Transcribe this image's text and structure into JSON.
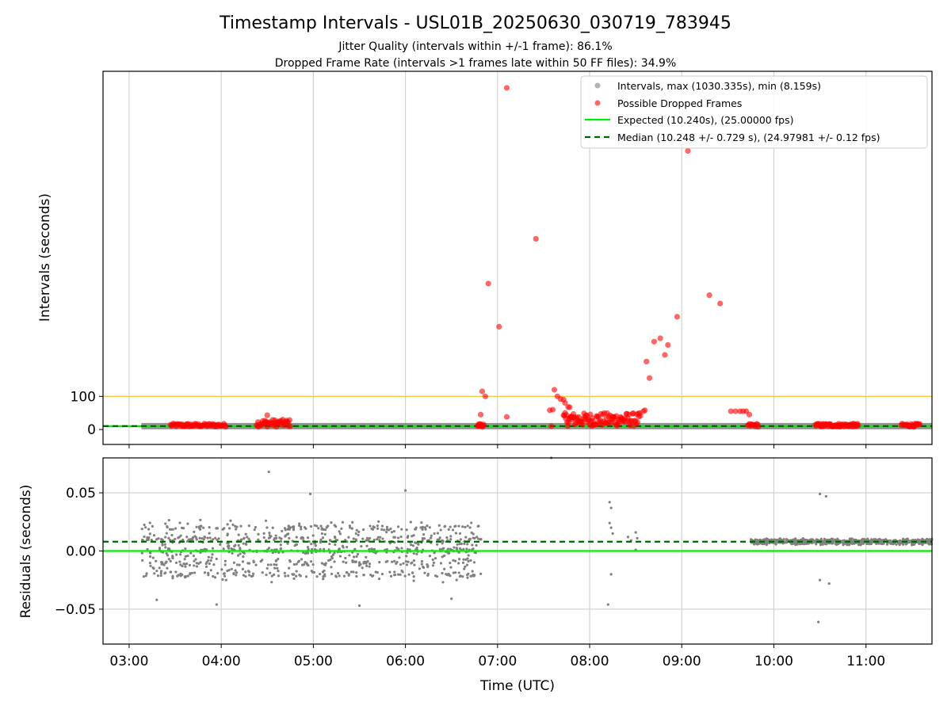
{
  "figure": {
    "title": "Timestamp Intervals - USL01B_20250630_030719_783945",
    "subtitle_1": "Jitter Quality (intervals within +/-1 frame): 86.1%",
    "subtitle_2": "Dropped Frame Rate (intervals >1 frames late within 50 FF files): 34.9%"
  },
  "chart_data": [
    {
      "type": "scatter",
      "ylabel": "Intervals (seconds)",
      "yticks": [
        0,
        100
      ],
      "ylim": [
        -45,
        1080
      ],
      "xlim": [
        "02:43",
        "11:43"
      ],
      "grid": "vertical",
      "legend_position": "top-right",
      "legend": [
        "Intervals, max (1030.335s), min (8.159s)",
        "Possible Dropped Frames",
        "Expected (10.240s), (25.00000 fps)",
        "Median (10.248 +/- 0.729 s), (24.97981 +/- 0.12 fps)"
      ],
      "expected_line": 10.24,
      "median_line": 10.248,
      "threshold_line": 100,
      "colors": {
        "intervals": "#808080",
        "dropped": "#ff0000",
        "expected": "#00ee00",
        "median": "#006400",
        "threshold": "#f5c842"
      },
      "intervals_band": {
        "from": "03:08",
        "to": "11:43",
        "value": 10.24
      },
      "dropped_clusters": [
        {
          "from": "03:27",
          "to": "04:03",
          "min": 8,
          "max": 18,
          "count": 60
        },
        {
          "from": "04:23",
          "to": "04:45",
          "min": 8,
          "max": 30,
          "count": 45
        },
        {
          "from": "06:47",
          "to": "06:51",
          "min": 8,
          "max": 18,
          "count": 12
        },
        {
          "from": "07:43",
          "to": "08:33",
          "min": 10,
          "max": 50,
          "count": 110
        },
        {
          "from": "09:43",
          "to": "09:50",
          "min": 8,
          "max": 18,
          "count": 12
        },
        {
          "from": "10:27",
          "to": "10:55",
          "min": 8,
          "max": 18,
          "count": 60
        },
        {
          "from": "11:23",
          "to": "11:35",
          "min": 8,
          "max": 18,
          "count": 25
        }
      ],
      "dropped_points": [
        [
          "04:30",
          43
        ],
        [
          "06:49",
          45
        ],
        [
          "06:50",
          115
        ],
        [
          "06:52",
          100
        ],
        [
          "06:54",
          440
        ],
        [
          "07:01",
          310
        ],
        [
          "07:06",
          1030
        ],
        [
          "07:06",
          38
        ],
        [
          "07:25",
          575
        ],
        [
          "07:34",
          58
        ],
        [
          "07:36",
          60
        ],
        [
          "07:35",
          10
        ],
        [
          "07:37",
          120
        ],
        [
          "07:39",
          100
        ],
        [
          "07:41",
          92
        ],
        [
          "07:43",
          90
        ],
        [
          "07:44",
          80
        ],
        [
          "07:46",
          68
        ],
        [
          "07:47",
          67
        ],
        [
          "07:48",
          40
        ],
        [
          "08:35",
          55
        ],
        [
          "08:36",
          58
        ],
        [
          "08:37",
          205
        ],
        [
          "08:39",
          155
        ],
        [
          "08:42",
          265
        ],
        [
          "08:46",
          275
        ],
        [
          "08:49",
          225
        ],
        [
          "08:51",
          255
        ],
        [
          "08:57",
          340
        ],
        [
          "09:04",
          840
        ],
        [
          "09:18",
          405
        ],
        [
          "09:25",
          380
        ],
        [
          "09:32",
          55
        ],
        [
          "09:35",
          55
        ],
        [
          "09:38",
          55
        ],
        [
          "09:40",
          55
        ],
        [
          "09:42",
          55
        ],
        [
          "09:44",
          45
        ]
      ]
    },
    {
      "type": "scatter",
      "xlabel": "Time (UTC)",
      "ylabel": "Residuals (seconds)",
      "xticks": [
        "03:00",
        "04:00",
        "05:00",
        "06:00",
        "07:00",
        "08:00",
        "09:00",
        "10:00",
        "11:00"
      ],
      "yticks": [
        "−0.05",
        "0.00",
        "0.05"
      ],
      "ytick_values": [
        -0.05,
        0,
        0.05
      ],
      "ylim": [
        -0.08,
        0.08
      ],
      "xlim": [
        "02:43",
        "11:43"
      ],
      "grid": "both",
      "expected_line": 0,
      "median_line": 0.008,
      "colors": {
        "residuals": "#808080",
        "expected": "#00ee00",
        "median": "#006400"
      },
      "noisy_segment": {
        "from": "03:08",
        "to": "06:50",
        "levels": [
          0.02,
          0.01,
          0.0,
          -0.01,
          -0.02
        ],
        "spread": 0.03,
        "count": 900
      },
      "tight_segment": {
        "from": "09:45",
        "to": "11:43",
        "center": 0.008,
        "spread": 0.003,
        "count": 700
      },
      "residual_points": [
        [
          "03:18",
          -0.042
        ],
        [
          "03:57",
          -0.046
        ],
        [
          "04:31",
          0.068
        ],
        [
          "04:58",
          0.049
        ],
        [
          "05:30",
          -0.047
        ],
        [
          "06:00",
          0.052
        ],
        [
          "06:30",
          -0.041
        ],
        [
          "07:35",
          0.08
        ],
        [
          "08:13",
          0.042
        ],
        [
          "08:14",
          0.037
        ],
        [
          "08:13",
          0.024
        ],
        [
          "08:14",
          0.02
        ],
        [
          "08:15",
          0.015
        ],
        [
          "08:14",
          -0.02
        ],
        [
          "08:12",
          -0.046
        ],
        [
          "08:25",
          0.012
        ],
        [
          "08:27",
          0.009
        ],
        [
          "08:30",
          0.016
        ],
        [
          "08:31",
          0.011
        ],
        [
          "08:30",
          0.001
        ],
        [
          "10:30",
          0.049
        ],
        [
          "10:34",
          0.047
        ],
        [
          "10:30",
          -0.025
        ],
        [
          "10:29",
          -0.061
        ],
        [
          "10:36",
          -0.028
        ]
      ]
    }
  ]
}
